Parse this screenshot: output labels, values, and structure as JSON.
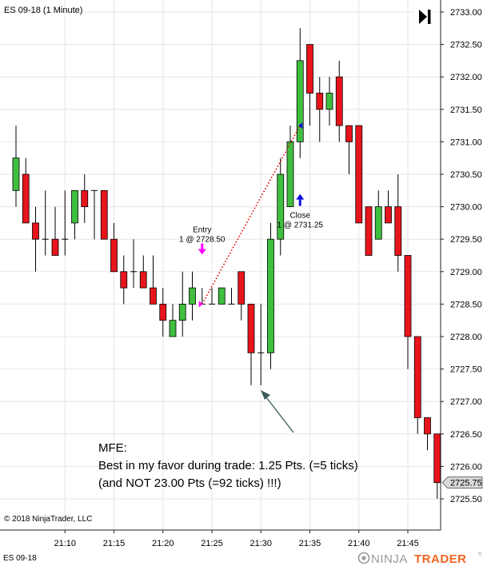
{
  "window": {
    "instrument_title": "ES 09-18 (1 Minute)",
    "footer_instrument": "ES 09-18",
    "copyright": "© 2018 NinjaTrader, LLC",
    "brand": {
      "prefix": "NINJA",
      "suffix": "TRADER",
      "mark": "®"
    },
    "collapse_icon": "skip-to-end-icon"
  },
  "colors": {
    "up": "#3fbf3f",
    "down": "#e8141c",
    "entry_marker": "#ff00ff",
    "exit_marker": "#1010e0",
    "trade_line": "#e00000",
    "arrow": "#3a5a5a",
    "grid": "#e6e6e6"
  },
  "annotations": {
    "entry_label": "Entry",
    "entry_price": "1 @ 2728.50",
    "close_label": "Close",
    "close_price": "1 @ 2731.25",
    "mfe_title": "MFE:",
    "mfe_line1": "Best in my favor during trade: 1.25 Pts. (=5 ticks)",
    "mfe_line2": "(and NOT 23.00 Pts (=92 ticks) !!!)"
  },
  "chart_data": {
    "type": "candlestick",
    "title": "ES 09-18 (1 Minute)",
    "ylim": [
      2725.25,
      2733.25
    ],
    "y_ticks": [
      "2733.00",
      "2732.50",
      "2732.00",
      "2731.50",
      "2731.00",
      "2730.50",
      "2730.00",
      "2729.50",
      "2729.00",
      "2728.50",
      "2728.00",
      "2727.50",
      "2727.00",
      "2726.50",
      "2726.00",
      "2725.50"
    ],
    "x_ticks": [
      "21:10",
      "21:15",
      "21:20",
      "21:25",
      "21:30",
      "21:35",
      "21:40",
      "21:45"
    ],
    "last_price": "2725.75",
    "grid": true,
    "candles": [
      {
        "time": "21:05",
        "open": 2730.25,
        "high": 2731.25,
        "low": 2730.0,
        "close": 2730.75
      },
      {
        "time": "21:06",
        "open": 2730.5,
        "high": 2730.75,
        "low": 2729.75,
        "close": 2729.75
      },
      {
        "time": "21:07",
        "open": 2729.75,
        "high": 2730.0,
        "low": 2729.0,
        "close": 2729.5
      },
      {
        "time": "21:08",
        "open": 2729.5,
        "high": 2730.25,
        "low": 2729.25,
        "close": 2729.5
      },
      {
        "time": "21:09",
        "open": 2729.5,
        "high": 2730.0,
        "low": 2729.25,
        "close": 2729.25
      },
      {
        "time": "21:10",
        "open": 2729.5,
        "high": 2730.25,
        "low": 2729.25,
        "close": 2729.5
      },
      {
        "time": "21:11",
        "open": 2729.75,
        "high": 2730.25,
        "low": 2729.5,
        "close": 2730.25
      },
      {
        "time": "21:12",
        "open": 2730.25,
        "high": 2730.5,
        "low": 2729.75,
        "close": 2730.0
      },
      {
        "time": "21:13",
        "open": 2730.25,
        "high": 2730.25,
        "low": 2729.5,
        "close": 2730.25
      },
      {
        "time": "21:14",
        "open": 2730.25,
        "high": 2730.25,
        "low": 2729.5,
        "close": 2729.5
      },
      {
        "time": "21:15",
        "open": 2729.5,
        "high": 2729.75,
        "low": 2729.0,
        "close": 2729.0
      },
      {
        "time": "21:16",
        "open": 2729.0,
        "high": 2729.25,
        "low": 2728.5,
        "close": 2728.75
      },
      {
        "time": "21:17",
        "open": 2729.0,
        "high": 2729.5,
        "low": 2728.75,
        "close": 2729.0
      },
      {
        "time": "21:18",
        "open": 2729.0,
        "high": 2729.25,
        "low": 2728.75,
        "close": 2728.75
      },
      {
        "time": "21:19",
        "open": 2728.75,
        "high": 2729.25,
        "low": 2728.5,
        "close": 2728.5
      },
      {
        "time": "21:20",
        "open": 2728.5,
        "high": 2728.75,
        "low": 2728.0,
        "close": 2728.25
      },
      {
        "time": "21:21",
        "open": 2728.0,
        "high": 2728.5,
        "low": 2728.0,
        "close": 2728.25
      },
      {
        "time": "21:22",
        "open": 2728.25,
        "high": 2729.0,
        "low": 2728.0,
        "close": 2728.5
      },
      {
        "time": "21:23",
        "open": 2728.5,
        "high": 2729.0,
        "low": 2728.25,
        "close": 2728.75
      },
      {
        "time": "21:24",
        "open": 2728.5,
        "high": 2728.75,
        "low": 2728.5,
        "close": 2728.5
      },
      {
        "time": "21:25",
        "open": 2728.5,
        "high": 2728.75,
        "low": 2728.5,
        "close": 2728.5
      },
      {
        "time": "21:26",
        "open": 2728.5,
        "high": 2728.75,
        "low": 2728.5,
        "close": 2728.75
      },
      {
        "time": "21:27",
        "open": 2728.5,
        "high": 2728.75,
        "low": 2728.5,
        "close": 2728.5
      },
      {
        "time": "21:28",
        "open": 2729.0,
        "high": 2729.0,
        "low": 2728.25,
        "close": 2728.5
      },
      {
        "time": "21:29",
        "open": 2728.5,
        "high": 2728.5,
        "low": 2727.25,
        "close": 2727.75
      },
      {
        "time": "21:30",
        "open": 2727.75,
        "high": 2728.5,
        "low": 2727.25,
        "close": 2727.75
      },
      {
        "time": "21:31",
        "open": 2727.75,
        "high": 2729.75,
        "low": 2727.5,
        "close": 2729.5
      },
      {
        "time": "21:32",
        "open": 2729.5,
        "high": 2730.75,
        "low": 2729.25,
        "close": 2730.5
      },
      {
        "time": "21:33",
        "open": 2730.0,
        "high": 2731.25,
        "low": 2730.0,
        "close": 2731.0
      },
      {
        "time": "21:34",
        "open": 2731.0,
        "high": 2732.75,
        "low": 2730.75,
        "close": 2732.25
      },
      {
        "time": "21:35",
        "open": 2732.5,
        "high": 2732.5,
        "low": 2731.25,
        "close": 2731.75
      },
      {
        "time": "21:36",
        "open": 2731.75,
        "high": 2732.0,
        "low": 2731.0,
        "close": 2731.5
      },
      {
        "time": "21:37",
        "open": 2731.5,
        "high": 2732.0,
        "low": 2731.25,
        "close": 2731.75
      },
      {
        "time": "21:38",
        "open": 2732.0,
        "high": 2732.25,
        "low": 2731.0,
        "close": 2731.25
      },
      {
        "time": "21:39",
        "open": 2731.25,
        "high": 2731.25,
        "low": 2730.5,
        "close": 2731.0
      },
      {
        "time": "21:40",
        "open": 2731.25,
        "high": 2731.25,
        "low": 2729.75,
        "close": 2729.75
      },
      {
        "time": "21:41",
        "open": 2730.0,
        "high": 2730.0,
        "low": 2729.25,
        "close": 2729.25
      },
      {
        "time": "21:42",
        "open": 2729.5,
        "high": 2730.25,
        "low": 2729.5,
        "close": 2730.0
      },
      {
        "time": "21:43",
        "open": 2730.0,
        "high": 2730.25,
        "low": 2729.75,
        "close": 2729.75
      },
      {
        "time": "21:44",
        "open": 2730.0,
        "high": 2730.5,
        "low": 2729.0,
        "close": 2729.25
      },
      {
        "time": "21:45",
        "open": 2729.25,
        "high": 2729.25,
        "low": 2727.5,
        "close": 2728.0
      },
      {
        "time": "21:46",
        "open": 2728.0,
        "high": 2728.0,
        "low": 2726.5,
        "close": 2726.75
      },
      {
        "time": "21:47",
        "open": 2726.75,
        "high": 2726.75,
        "low": 2726.25,
        "close": 2726.5
      },
      {
        "time": "21:48",
        "open": 2726.5,
        "high": 2726.5,
        "low": 2725.5,
        "close": 2725.75
      }
    ],
    "trade": {
      "entry": {
        "time": "21:24",
        "price": 2728.5
      },
      "exit": {
        "time": "21:34",
        "price": 2731.25
      }
    }
  }
}
